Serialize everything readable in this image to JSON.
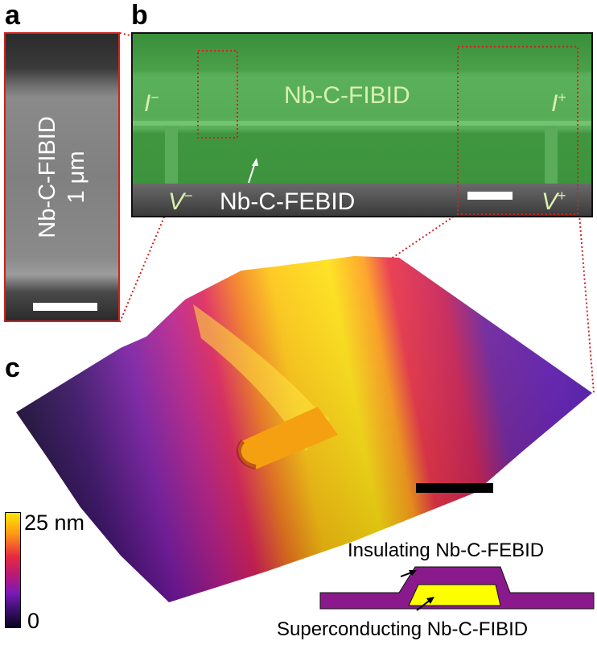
{
  "panels": {
    "a": {
      "letter": "a",
      "vertical_label_line1": "Nb-C-FIBID",
      "vertical_label_line2": "1 μm"
    },
    "b": {
      "letter": "b",
      "title": "Nb-C-FIBID",
      "i_minus": "I",
      "i_minus_sup": "−",
      "i_plus": "I",
      "i_plus_sup": "+",
      "v_minus": "V",
      "v_minus_sup": "−",
      "v_plus": "V",
      "v_plus_sup": "+",
      "febid_label": "Nb-C-FEBID"
    },
    "c": {
      "letter": "c",
      "colorbar_max": "25 nm",
      "colorbar_min": "0",
      "inset_top_label": "Insulating Nb-C-FEBID",
      "inset_bottom_label": "Superconducting Nb-C-FIBID"
    }
  },
  "colors": {
    "frame_red": "#d42020",
    "sem_green": "#3f9a3f",
    "inset_purple": "#8a1a8c",
    "inset_yellow": "#ffff00",
    "label_green": "#d8f0b0"
  }
}
